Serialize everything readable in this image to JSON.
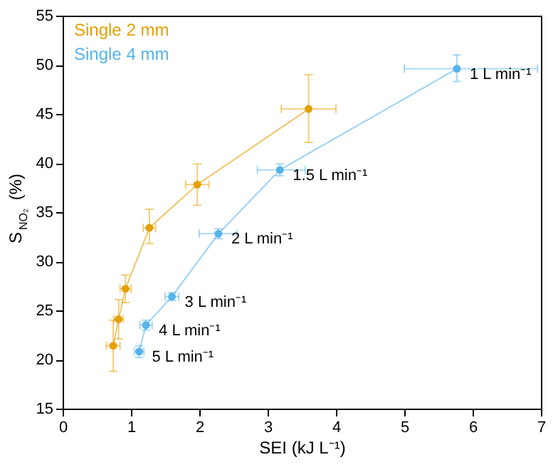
{
  "chart_data": {
    "type": "line",
    "xlabel": "SEI (kJ L⁻¹)",
    "ylabel": "S$_{NO₂}$ (%)",
    "xlim": [
      0,
      7
    ],
    "xticks": [
      0,
      1,
      2,
      3,
      4,
      5,
      6,
      7
    ],
    "ylim": [
      15,
      55
    ],
    "yticks": [
      15,
      20,
      25,
      30,
      35,
      40,
      45,
      50,
      55
    ],
    "grid": false,
    "legend": "top left",
    "marker": "circle",
    "line_style": "solid",
    "series": [
      {
        "name": "Single 2 mm",
        "color": "#e69f00",
        "x": [
          0.74,
          0.82,
          0.92,
          1.27,
          1.97,
          3.6
        ],
        "values": [
          21.4,
          24.1,
          27.2,
          33.4,
          37.8,
          45.5
        ],
        "errors": [
          [
            18.8,
            24.0
          ],
          [
            22.1,
            26.1
          ],
          [
            25.8,
            28.6
          ],
          [
            31.8,
            35.3
          ],
          [
            35.7,
            39.9
          ],
          [
            42.1,
            49.0
          ]
        ],
        "xerrors": [
          [
            0.64,
            0.84
          ],
          [
            0.75,
            0.89
          ],
          [
            0.84,
            1.0
          ],
          [
            1.18,
            1.36
          ],
          [
            1.8,
            2.14
          ],
          [
            3.2,
            4.0
          ]
        ]
      },
      {
        "name": "Single 4 mm",
        "color": "#56b4e9",
        "x": [
          1.12,
          1.22,
          1.6,
          2.28,
          3.18,
          5.77
        ],
        "values": [
          20.8,
          23.5,
          26.4,
          32.8,
          39.3,
          49.6
        ],
        "errors": [
          [
            20.2,
            21.4
          ],
          [
            23.0,
            24.0
          ],
          [
            26.0,
            26.8
          ],
          [
            32.3,
            33.3
          ],
          [
            38.7,
            39.9
          ],
          [
            48.3,
            51.0
          ]
        ],
        "xerrors": [
          [
            1.05,
            1.19
          ],
          [
            1.13,
            1.31
          ],
          [
            1.5,
            1.7
          ],
          [
            2.0,
            2.55
          ],
          [
            2.85,
            3.55
          ],
          [
            5.0,
            6.95
          ]
        ]
      }
    ],
    "annotations": [
      {
        "text": "1 L min⁻¹",
        "x": 5.77,
        "y": 49.6
      },
      {
        "text": "1.5 L min⁻¹",
        "x": 3.18,
        "y": 39.3
      },
      {
        "text": "2 L min⁻¹",
        "x": 2.28,
        "y": 32.8
      },
      {
        "text": "3 L min⁻¹",
        "x": 1.6,
        "y": 26.4
      },
      {
        "text": "4 L min⁻¹",
        "x": 1.22,
        "y": 23.5
      },
      {
        "text": "5 L min⁻¹",
        "x": 1.12,
        "y": 20.8
      }
    ]
  }
}
